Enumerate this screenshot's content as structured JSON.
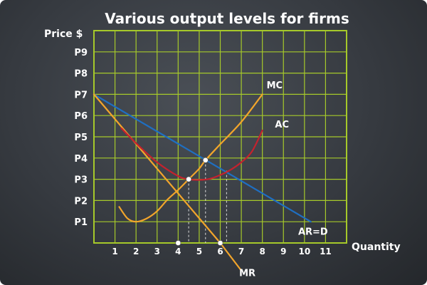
{
  "colors": {
    "grid": "#a6c92a",
    "demand": "#1f6fc2",
    "mr": "#f2a52b",
    "mc": "#f2a52b",
    "ac": "#c4222e",
    "marker": "#ffffff"
  },
  "chart_data": {
    "type": "line",
    "title": "Various output levels for firms",
    "ylabel": "Price $",
    "xlabel": "Quantity",
    "xlim": [
      0,
      12
    ],
    "ylim": [
      0,
      10
    ],
    "x_ticks": [
      "1",
      "2",
      "3",
      "4",
      "5",
      "6",
      "7",
      "8",
      "9",
      "10",
      "11"
    ],
    "y_ticks": [
      "P1",
      "P2",
      "P3",
      "P4",
      "P5",
      "P6",
      "P7",
      "P8",
      "P9"
    ],
    "grid": true,
    "series": [
      {
        "name": "AR=D",
        "color_key": "demand",
        "points": [
          [
            0,
            7.0
          ],
          [
            10.3,
            1.0
          ]
        ]
      },
      {
        "name": "MR",
        "color_key": "mr",
        "points": [
          [
            0,
            7.0
          ],
          [
            6.0,
            0
          ],
          [
            7.0,
            -1.3
          ]
        ]
      },
      {
        "name": "MC",
        "color_key": "mc",
        "points": [
          [
            1.2,
            1.7
          ],
          [
            1.6,
            1.15
          ],
          [
            2.0,
            1.0
          ],
          [
            2.5,
            1.15
          ],
          [
            3.0,
            1.5
          ],
          [
            3.5,
            2.05
          ],
          [
            4.0,
            2.5
          ],
          [
            4.5,
            3.0
          ],
          [
            5.0,
            3.5
          ],
          [
            5.3,
            3.9
          ],
          [
            6.0,
            4.65
          ],
          [
            7.0,
            5.7
          ],
          [
            8.0,
            7.0
          ]
        ]
      },
      {
        "name": "AC",
        "color_key": "ac",
        "points": [
          [
            1.3,
            5.4
          ],
          [
            2.0,
            4.7
          ],
          [
            3.0,
            3.8
          ],
          [
            4.0,
            3.15
          ],
          [
            4.5,
            3.0
          ],
          [
            5.0,
            2.97
          ],
          [
            5.5,
            3.02
          ],
          [
            6.0,
            3.2
          ],
          [
            6.5,
            3.45
          ],
          [
            7.0,
            3.8
          ],
          [
            7.5,
            4.3
          ],
          [
            8.0,
            5.3
          ]
        ]
      }
    ],
    "labels": [
      {
        "text": "MC",
        "x": 8.2,
        "y": 7.45
      },
      {
        "text": "AC",
        "x": 8.6,
        "y": 5.6
      },
      {
        "text": "AR=D",
        "x": 9.7,
        "y": 0.55
      },
      {
        "text": "MR",
        "x": 6.9,
        "y": -1.4
      }
    ],
    "markers": [
      {
        "x": 4.0,
        "y": 0
      },
      {
        "x": 6.0,
        "y": 0
      },
      {
        "x": 4.5,
        "y": 3.0
      },
      {
        "x": 5.3,
        "y": 3.9
      }
    ],
    "droplines": [
      {
        "x": 4.5,
        "y": 3.0
      },
      {
        "x": 5.3,
        "y": 3.9
      },
      {
        "x": 6.3,
        "y": 3.4
      }
    ]
  }
}
